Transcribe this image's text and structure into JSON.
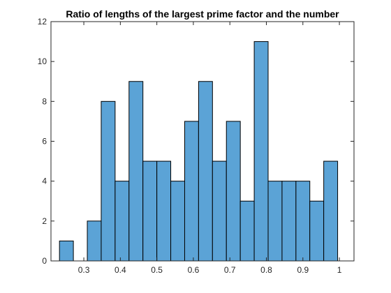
{
  "chart_data": {
    "type": "bar",
    "title": "Ratio of lengths of the largest prime factor and the number",
    "xlabel": "",
    "ylabel": "",
    "xlim": [
      0.21,
      1.04
    ],
    "ylim": [
      0,
      12
    ],
    "xticks": [
      0.3,
      0.4,
      0.5,
      0.6,
      0.7,
      0.8,
      0.9,
      1
    ],
    "xtick_labels": [
      "0.3",
      "0.4",
      "0.5",
      "0.6",
      "0.7",
      "0.8",
      "0.9",
      "1"
    ],
    "yticks": [
      0,
      2,
      4,
      6,
      8,
      10,
      12
    ],
    "ytick_labels": [
      "0",
      "2",
      "4",
      "6",
      "8",
      "10",
      "12"
    ],
    "grid": false,
    "bin_edges": [
      0.2333,
      0.2714,
      0.3095,
      0.3476,
      0.3857,
      0.4238,
      0.4619,
      0.5,
      0.5381,
      0.5762,
      0.6143,
      0.6524,
      0.6905,
      0.7286,
      0.7667,
      0.8048,
      0.8429,
      0.881,
      0.919,
      0.9571,
      0.9952
    ],
    "values": [
      1,
      0,
      2,
      8,
      4,
      9,
      5,
      5,
      4,
      7,
      9,
      5,
      7,
      3,
      11,
      4,
      4,
      4,
      3,
      5
    ],
    "colors": {
      "bar_fill": "#5BA3D6",
      "bar_edge": "#000000",
      "axis": "#262626",
      "background": "#ffffff"
    }
  }
}
